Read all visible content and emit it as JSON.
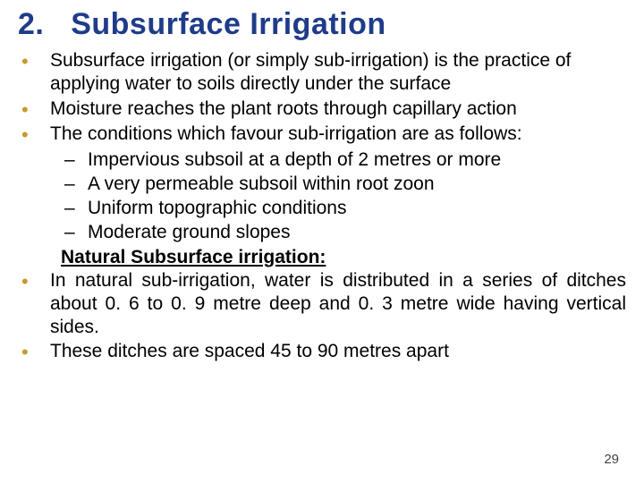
{
  "colors": {
    "title_color": "#1f3c8a",
    "bullet_color": "#c79a2a",
    "body_color": "#000000",
    "page_num_color": "#444444",
    "background": "#ffffff"
  },
  "fonts": {
    "title_size": 34,
    "body_size": 21,
    "page_num_size": 15
  },
  "title": {
    "number": "2.",
    "text": "Subsurface Irrigation"
  },
  "bullets": [
    "Subsurface irrigation (or simply sub-irrigation) is the practice of applying water to soils directly under the surface",
    "Moisture reaches the plant roots through capillary action",
    "The conditions which favour sub-irrigation are as follows:"
  ],
  "sub_bullets": [
    "Impervious subsoil at a depth of 2 metres or more",
    "A very permeable subsoil within root zoon",
    "Uniform topographic conditions",
    "Moderate ground slopes"
  ],
  "natural_heading": "Natural Subsurface irrigation:",
  "bullets2": [
    "In natural sub-irrigation, water is distributed in a series of ditches about 0. 6 to 0. 9 metre deep and 0. 3 metre wide having vertical sides.",
    "These ditches are spaced 45 to 90 metres apart"
  ],
  "page_number": "29"
}
